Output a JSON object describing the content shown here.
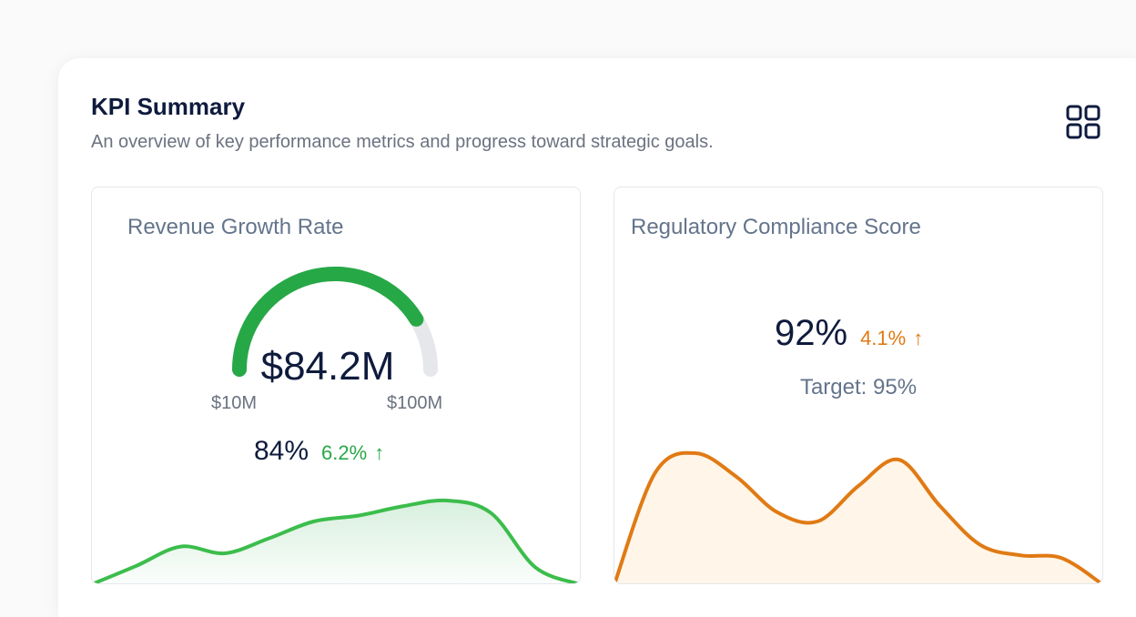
{
  "header": {
    "title": "KPI Summary",
    "subtitle": "An overview of key performance metrics and progress toward strategic goals.",
    "layout_icon": "grid-icon"
  },
  "cards": {
    "revenue": {
      "title": "Revenue Growth Rate",
      "value": "$84.2M",
      "min_label": "$10M",
      "max_label": "$100M",
      "gauge_fraction": 0.824,
      "percent": "84%",
      "delta": "6.2%",
      "arrow": "↑",
      "color": "#27a846",
      "sparkline": [
        0,
        0.22,
        0.45,
        0.37,
        0.55,
        0.75,
        0.82,
        0.93,
        1.0,
        0.85,
        0.2,
        0.0
      ]
    },
    "compliance": {
      "title": "Regulatory Compliance Score",
      "value": "92%",
      "delta": "4.1%",
      "arrow": "↑",
      "target": "Target: 95%",
      "color": "#e07a14",
      "sparkline": [
        0,
        0.85,
        1.0,
        0.82,
        0.55,
        0.48,
        0.75,
        0.95,
        0.6,
        0.3,
        0.22,
        0.2,
        0.0
      ]
    }
  },
  "colors": {
    "accent_green": "#27a846",
    "accent_orange": "#e07a14",
    "gauge_track": "#e5e7eb",
    "heading": "#0f1b3d",
    "muted": "#64748b"
  }
}
